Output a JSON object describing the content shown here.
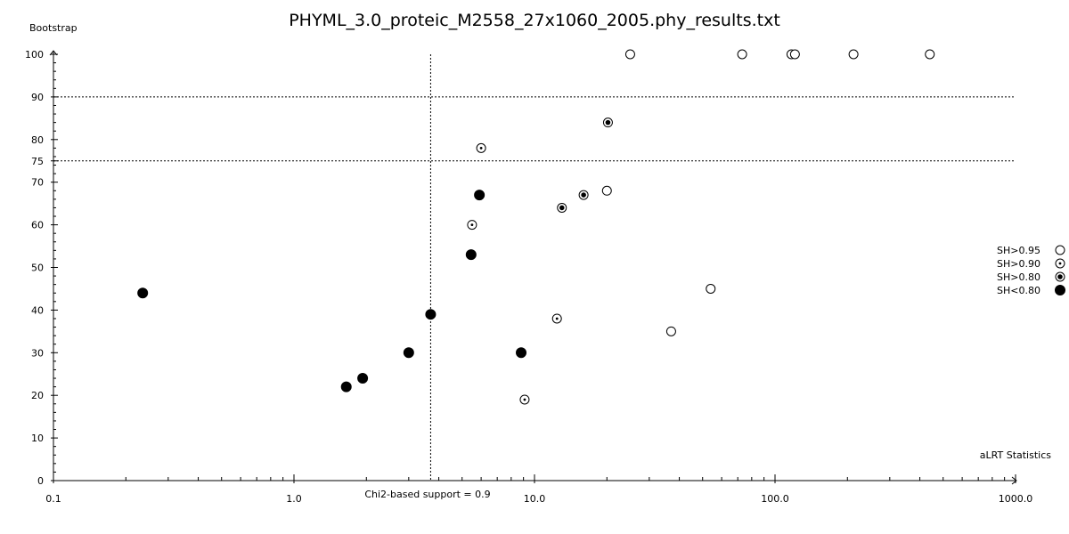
{
  "chart_data": {
    "type": "scatter",
    "title": "PHYML_3.0_proteic_M2558_27x1060_2005.phy_results.txt",
    "xlabel": "aLRT Statistics",
    "ylabel": "Bootstrap",
    "x_scale": "log",
    "xlim": [
      0.1,
      1000.0
    ],
    "ylim": [
      0,
      100
    ],
    "x_ticks": [
      {
        "value": 0.1,
        "label": "0.1"
      },
      {
        "value": 1.0,
        "label": "1.0"
      },
      {
        "value": 10.0,
        "label": "10.0"
      },
      {
        "value": 100.0,
        "label": "100.0"
      },
      {
        "value": 1000.0,
        "label": "1000.0"
      }
    ],
    "y_ticks": [
      0,
      10,
      20,
      30,
      40,
      50,
      60,
      70,
      75,
      80,
      90,
      100
    ],
    "reference_lines": {
      "vertical": {
        "x": 3.7,
        "label": "Chi2-based support = 0.9"
      },
      "horizontal": [
        90,
        75
      ]
    },
    "legend": {
      "position": "right",
      "entries": [
        {
          "label": "SH>0.95",
          "marker": "open-circle"
        },
        {
          "label": "SH>0.90",
          "marker": "dotted-circle"
        },
        {
          "label": "SH>0.80",
          "marker": "filled-center-circle"
        },
        {
          "label": "SH<0.80",
          "marker": "filled-circle"
        }
      ]
    },
    "series": [
      {
        "name": "SH>0.95",
        "marker": "open-circle",
        "points": [
          [
            25,
            100
          ],
          [
            73,
            100
          ],
          [
            117,
            100
          ],
          [
            121,
            100
          ],
          [
            212,
            100
          ],
          [
            440,
            100
          ],
          [
            20,
            68
          ],
          [
            54,
            45
          ],
          [
            37,
            35
          ]
        ]
      },
      {
        "name": "SH>0.90",
        "marker": "dotted-circle",
        "points": [
          [
            6.0,
            78
          ],
          [
            5.5,
            60
          ],
          [
            12.4,
            38
          ],
          [
            9.1,
            19
          ]
        ]
      },
      {
        "name": "SH>0.80",
        "marker": "filled-center-circle",
        "points": [
          [
            20.2,
            84
          ],
          [
            16.0,
            67
          ],
          [
            13.0,
            64
          ]
        ]
      },
      {
        "name": "SH<0.80",
        "marker": "filled-circle",
        "points": [
          [
            0.235,
            44
          ],
          [
            1.65,
            22
          ],
          [
            1.93,
            24
          ],
          [
            3.0,
            30
          ],
          [
            3.7,
            39
          ],
          [
            5.45,
            53
          ],
          [
            5.9,
            67
          ],
          [
            8.8,
            30
          ]
        ]
      }
    ]
  }
}
